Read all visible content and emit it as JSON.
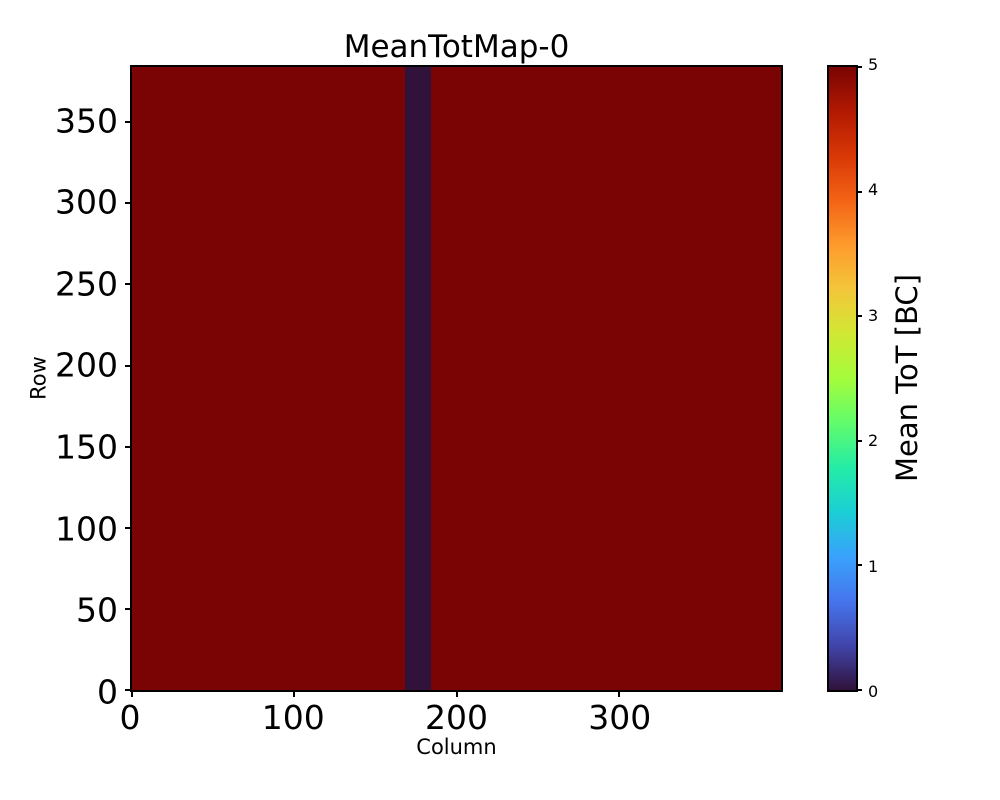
{
  "figure": {
    "background_color": "#ffffff",
    "text_color": "#000000"
  },
  "chart_data": {
    "type": "heatmap",
    "title": "MeanTotMap-0",
    "xlabel": "Column",
    "ylabel": "Row",
    "xlim": [
      0,
      400
    ],
    "ylim": [
      0,
      384
    ],
    "xticks": [
      0,
      100,
      200,
      300
    ],
    "yticks": [
      0,
      50,
      100,
      150,
      200,
      250,
      300,
      350
    ],
    "grid": false,
    "heatmap": {
      "description": "uniform map at max value with one low-value vertical stripe",
      "fill_value": 5,
      "fill_color": "#7a0403",
      "regions": [
        {
          "name": "low-value-column-stripe",
          "value": 0,
          "color": "#30123b",
          "col_start": 168,
          "col_end": 184,
          "row_start": 0,
          "row_end": 384
        }
      ]
    },
    "colorbar": {
      "label": "Mean ToT [BC]",
      "min": 0,
      "max": 5,
      "ticks": [
        0,
        1,
        2,
        3,
        4,
        5
      ],
      "colormap": "turbo",
      "gradient_stops": [
        "#30123b",
        "#4145ab",
        "#4675ed",
        "#39a2fc",
        "#1bcfd4",
        "#24eca6",
        "#61fc6c",
        "#a4fc3c",
        "#d1e834",
        "#f3c63a",
        "#fe9b2d",
        "#f36315",
        "#d93806",
        "#b11901",
        "#7a0402"
      ],
      "legend_position": "right"
    }
  }
}
